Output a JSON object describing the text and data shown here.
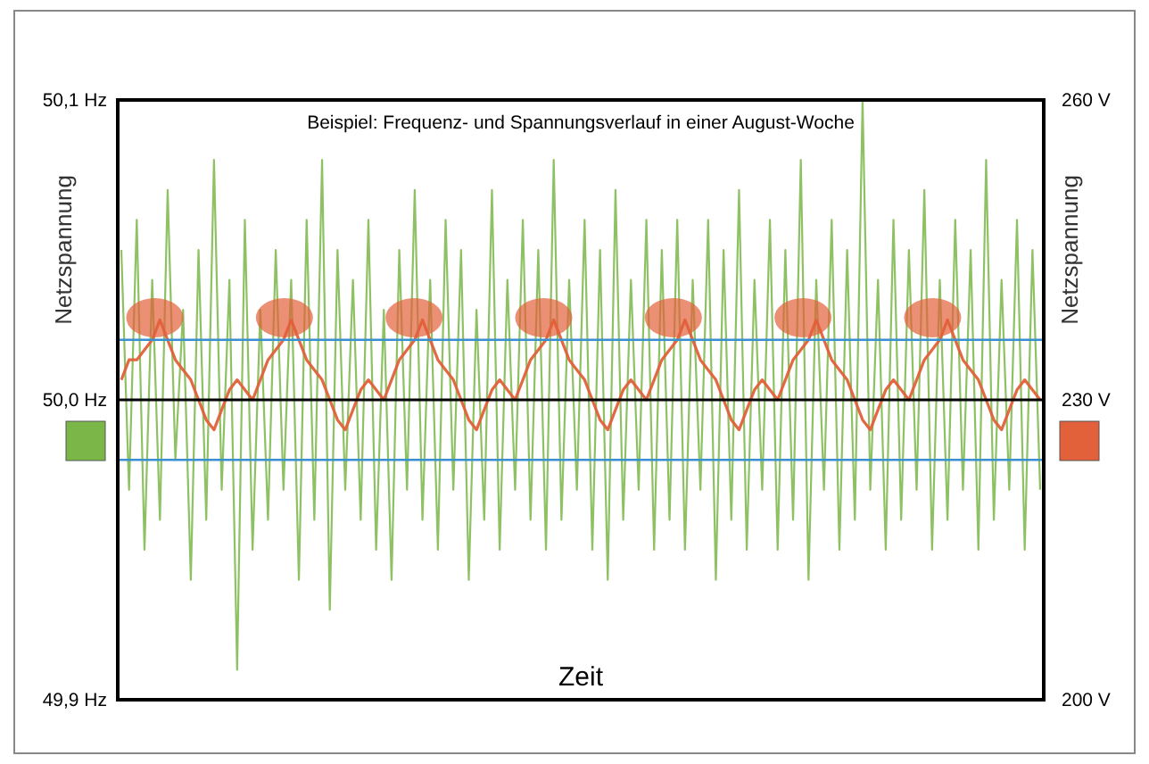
{
  "chart_data": {
    "type": "line",
    "title": "Beispiel: Frequenz- und Spannungsverlauf in einer August-Woche",
    "xlabel": "Zeit",
    "ylabel": "Netzspannung",
    "y2label": "Netzspannung",
    "categories": [
      null,
      null,
      null,
      null,
      null,
      null,
      null,
      null,
      null,
      null,
      null,
      null,
      null,
      null,
      null,
      null,
      null,
      null,
      null,
      null,
      null,
      null,
      null,
      null,
      null,
      null,
      null,
      null,
      null,
      null,
      null,
      null,
      null,
      null,
      null,
      null,
      null,
      null,
      null,
      null,
      null,
      null,
      null,
      null,
      null,
      null,
      null,
      null,
      null,
      null,
      null,
      null,
      null,
      null,
      null,
      null,
      null,
      null,
      null,
      null,
      null,
      null,
      null,
      null,
      null,
      null,
      null,
      null,
      null,
      null,
      null,
      null,
      null,
      null,
      null,
      null,
      null,
      null,
      null,
      null,
      null,
      null,
      null,
      null,
      null,
      null,
      null,
      null,
      null,
      null,
      null,
      null,
      null,
      null,
      null,
      null,
      null,
      null,
      null,
      null,
      null,
      null,
      null,
      null,
      null,
      null,
      null,
      null,
      null,
      null,
      null,
      null,
      null,
      null,
      null,
      null,
      null,
      null,
      null,
      null
    ],
    "series": [
      {
        "color": "#7ab648",
        "values": [
          50.05,
          49.97,
          50.06,
          49.95,
          50.04,
          49.96,
          50.07,
          49.98,
          50.03,
          49.94,
          50.05,
          49.96,
          50.08,
          49.97,
          50.04,
          49.91,
          50.06,
          49.95,
          50.03,
          49.96,
          50.05,
          49.97,
          50.04,
          49.94,
          50.06,
          49.96,
          50.08,
          49.93,
          50.05,
          49.97,
          50.04,
          49.96,
          50.06,
          49.95,
          50.03,
          49.94,
          50.05,
          49.97,
          50.07,
          49.96,
          50.04,
          49.95,
          50.06,
          49.97,
          50.05,
          49.94,
          50.03,
          49.96,
          50.07,
          49.95,
          50.04,
          49.97,
          50.06,
          49.96,
          50.05,
          49.95,
          50.08,
          49.96,
          50.04,
          49.97,
          50.06,
          49.95,
          50.05,
          49.94,
          50.07,
          49.96,
          50.04,
          49.97,
          50.06,
          49.95,
          50.05,
          49.96,
          50.06,
          49.95,
          50.04,
          49.97,
          50.06,
          49.94,
          50.05,
          49.96,
          50.07,
          49.95,
          50.04,
          49.97,
          50.06,
          49.95,
          50.05,
          49.96,
          50.08,
          49.94,
          50.04,
          49.97,
          50.06,
          49.95,
          50.05,
          49.96,
          50.1,
          49.97,
          50.04,
          49.95,
          50.06,
          49.96,
          50.05,
          49.97,
          50.07,
          49.95,
          50.04,
          49.96,
          50.06,
          49.97,
          50.05,
          49.95,
          50.08,
          49.96,
          50.04,
          49.97,
          50.06,
          49.95,
          50.05,
          49.97
        ]
      },
      {
        "color": "#e2603a",
        "axis": "y2",
        "values": [
          232,
          234,
          234,
          235,
          236,
          238,
          236,
          234,
          233,
          232,
          230,
          228,
          227,
          229,
          231,
          232,
          231,
          230,
          232,
          234,
          235,
          236,
          238,
          236,
          234,
          233,
          232,
          230,
          228,
          227,
          229,
          231,
          232,
          231,
          230,
          232,
          234,
          235,
          236,
          238,
          236,
          234,
          233,
          232,
          230,
          228,
          227,
          229,
          231,
          232,
          231,
          230,
          232,
          234,
          235,
          236,
          238,
          236,
          234,
          233,
          232,
          230,
          228,
          227,
          229,
          231,
          232,
          231,
          230,
          232,
          234,
          235,
          236,
          238,
          236,
          234,
          233,
          232,
          230,
          228,
          227,
          229,
          231,
          232,
          231,
          230,
          232,
          234,
          235,
          236,
          238,
          236,
          234,
          233,
          232,
          230,
          228,
          227,
          229,
          231,
          232,
          231,
          230,
          232,
          234,
          235,
          236,
          238,
          236,
          234,
          233,
          232,
          230,
          228,
          227,
          229,
          231,
          232,
          231,
          230
        ]
      }
    ],
    "ylim": [
      49.9,
      50.1
    ],
    "yticks": [
      {
        "value": 49.9,
        "label": "49,9 Hz"
      },
      {
        "value": 50.0,
        "label": "50,0 Hz"
      },
      {
        "value": 50.1,
        "label": "50,1 Hz"
      }
    ],
    "y2lim": [
      200,
      260
    ],
    "y2ticks": [
      {
        "value": 200,
        "label": "200 V"
      },
      {
        "value": 230,
        "label": "230 V"
      },
      {
        "value": 260,
        "label": "260 V"
      }
    ],
    "ref_lines": [
      {
        "axis": "y",
        "value": 50.02,
        "color": "#3a8fd0"
      },
      {
        "axis": "y",
        "value": 49.98,
        "color": "#3a8fd0"
      },
      {
        "axis": "y",
        "value": 50.0,
        "color": "#000000"
      }
    ],
    "tick_labels": "y"
  }
}
